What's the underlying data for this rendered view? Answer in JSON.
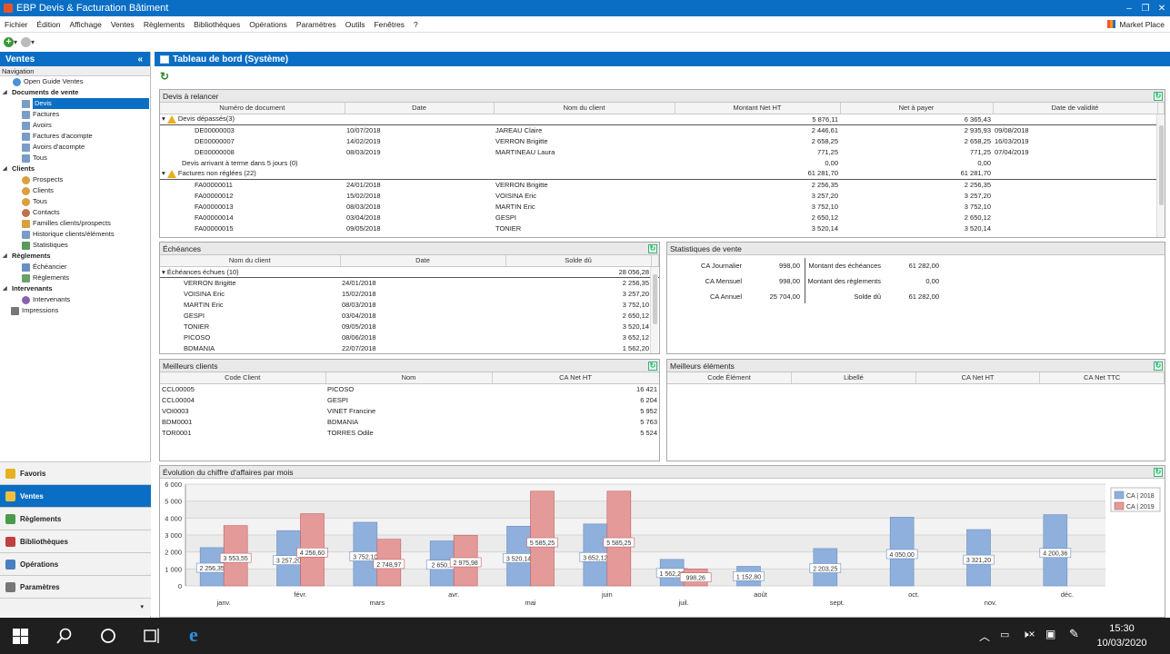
{
  "window": {
    "title": "EBP Devis & Facturation Bâtiment"
  },
  "menu": {
    "items": [
      "Fichier",
      "Édition",
      "Affichage",
      "Ventes",
      "Règlements",
      "Bibliothèques",
      "Opérations",
      "Paramètres",
      "Outils",
      "Fenêtres",
      "?"
    ],
    "marketplace": "Market Place"
  },
  "sidebar": {
    "title": "Ventes",
    "collapse": "«",
    "nav_label": "Navigation",
    "open_guide": "Open Guide Ventes",
    "groups": [
      {
        "label": "Documents de vente",
        "items": [
          "Devis",
          "Factures",
          "Avoirs",
          "Factures d'acompte",
          "Avoirs d'acompte",
          "Tous"
        ]
      },
      {
        "label": "Clients",
        "items": [
          "Prospects",
          "Clients",
          "Tous",
          "Contacts",
          "Familles clients/prospects",
          "Historique clients/éléments",
          "Statistiques"
        ]
      },
      {
        "label": "Règlements",
        "items": [
          "Échéancier",
          "Règlements"
        ]
      },
      {
        "label": "Intervenants",
        "items": [
          "Intervenants"
        ]
      }
    ],
    "impressions": "Impressions",
    "modules": [
      "Favoris",
      "Ventes",
      "Règlements",
      "Bibliothèques",
      "Opérations",
      "Paramètres"
    ]
  },
  "main": {
    "title": "Tableau de bord (Système)"
  },
  "devis": {
    "title": "Devis à relancer",
    "headers": [
      "Numéro de document",
      "Date",
      "Nom du client",
      "Montant Net HT",
      "Net à payer",
      "Date de validité"
    ],
    "groups": [
      {
        "label": "Devis dépassés(3)",
        "ht": "5 876,11",
        "net": "6 365,43",
        "rows": [
          [
            "DE00000003",
            "10/07/2018",
            "JAREAU Claire",
            "2 446,61",
            "2 935,93",
            "09/08/2018"
          ],
          [
            "DE00000007",
            "14/02/2019",
            "VERRON Brigitte",
            "2 658,25",
            "2 658,25",
            "16/03/2019"
          ],
          [
            "DE00000008",
            "08/03/2019",
            "MARTINEAU Laura",
            "771,25",
            "771,25",
            "07/04/2019"
          ]
        ]
      },
      {
        "label": "Devis arrivant à terme dans 5 jours (0)",
        "ht": "0,00",
        "net": "0,00",
        "rows": []
      },
      {
        "label": "Factures non réglées (22)",
        "ht": "61 281,70",
        "net": "61 281,70",
        "rows": [
          [
            "FA00000011",
            "24/01/2018",
            "VERRON Brigitte",
            "2 256,35",
            "2 256,35",
            ""
          ],
          [
            "FA00000012",
            "15/02/2018",
            "VOISINA Eric",
            "3 257,20",
            "3 257,20",
            ""
          ],
          [
            "FA00000013",
            "08/03/2018",
            "MARTIN Eric",
            "3 752,10",
            "3 752,10",
            ""
          ],
          [
            "FA00000014",
            "03/04/2018",
            "GESPI",
            "2 650,12",
            "2 650,12",
            ""
          ],
          [
            "FA00000015",
            "09/05/2018",
            "TONIER",
            "3 520,14",
            "3 520,14",
            ""
          ]
        ]
      }
    ]
  },
  "echeances": {
    "title": "Échéances",
    "headers": [
      "Nom du client",
      "Date",
      "Solde dû"
    ],
    "group": {
      "label": "Échéances échues (10)",
      "total": "28 056,28"
    },
    "rows": [
      [
        "VERRON Brigitte",
        "24/01/2018",
        "2 256,35"
      ],
      [
        "VOISINA Eric",
        "15/02/2018",
        "3 257,20"
      ],
      [
        "MARTIN Eric",
        "08/03/2018",
        "3 752,10"
      ],
      [
        "GESPI",
        "03/04/2018",
        "2 650,12"
      ],
      [
        "TONIER",
        "09/05/2018",
        "3 520,14"
      ],
      [
        "PICOSO",
        "08/06/2018",
        "3 652,12"
      ],
      [
        "BDMANIA",
        "22/07/2018",
        "1 562,20"
      ]
    ]
  },
  "stats": {
    "title": "Statistiques de vente",
    "left": [
      [
        "CA Journalier",
        "998,00"
      ],
      [
        "CA Mensuel",
        "998,00"
      ],
      [
        "CA Annuel",
        "25 704,00"
      ]
    ],
    "right": [
      [
        "Montant des échéances",
        "61 282,00"
      ],
      [
        "Montant des règlements",
        "0,00"
      ],
      [
        "Solde dû",
        "61 282,00"
      ]
    ]
  },
  "clients": {
    "title": "Meilleurs clients",
    "headers": [
      "Code Client",
      "Nom",
      "CA Net HT"
    ],
    "rows": [
      [
        "CCL00005",
        "PICOSO",
        "16 421"
      ],
      [
        "CCL00004",
        "GESPI",
        "6 204"
      ],
      [
        "VOI0003",
        "VINET Francine",
        "5 952"
      ],
      [
        "BDM0001",
        "BDMANIA",
        "5 763"
      ],
      [
        "TOR0001",
        "TORRES Odile",
        "5 524"
      ]
    ]
  },
  "elements": {
    "title": "Meilleurs éléments",
    "headers": [
      "Code Élément",
      "Libellé",
      "CA Net HT",
      "CA Net TTC"
    ]
  },
  "chart_title": "Évolution du chiffre d'affaires par mois",
  "chart_data": {
    "type": "bar",
    "categories": [
      "janv.",
      "févr.",
      "mars",
      "avr.",
      "mai",
      "juin",
      "juil.",
      "août",
      "sept.",
      "oct.",
      "nov.",
      "déc."
    ],
    "series": [
      {
        "name": "CA | 2018",
        "color": "#8fb0dc",
        "values": [
          2256.35,
          3257.2,
          3752.1,
          2650.12,
          3520.14,
          3652.12,
          1562.2,
          1152.8,
          2203.25,
          4050.0,
          3321.2,
          4200.36
        ],
        "labels": [
          "2 256,35",
          "3 257,20",
          "3 752,10",
          "2 650,1",
          "3 520,14",
          "3 652,12",
          "1 562,20",
          "1 152,80",
          "2 203,25",
          "4 050,00",
          "3 321,20",
          "4 200,36"
        ]
      },
      {
        "name": "CA | 2019",
        "color": "#e59a9a",
        "values": [
          3553.55,
          4256.6,
          2748.97,
          2975.98,
          5585.25,
          5585.25,
          998.26,
          null,
          null,
          null,
          null,
          null
        ],
        "labels": [
          "3 553,55",
          "4 256,60",
          "2 748,97",
          "2 975,98",
          "5 585,25",
          "5 585,25",
          "998,26",
          null,
          null,
          null,
          null,
          null
        ]
      }
    ],
    "yticks": [
      "0",
      "1 000",
      "2 000",
      "3 000",
      "4 000",
      "5 000",
      "6 000"
    ],
    "ylim": [
      0,
      6000
    ],
    "legend": "top-right"
  },
  "taskbar": {
    "time": "15:30",
    "date": "10/03/2020"
  }
}
